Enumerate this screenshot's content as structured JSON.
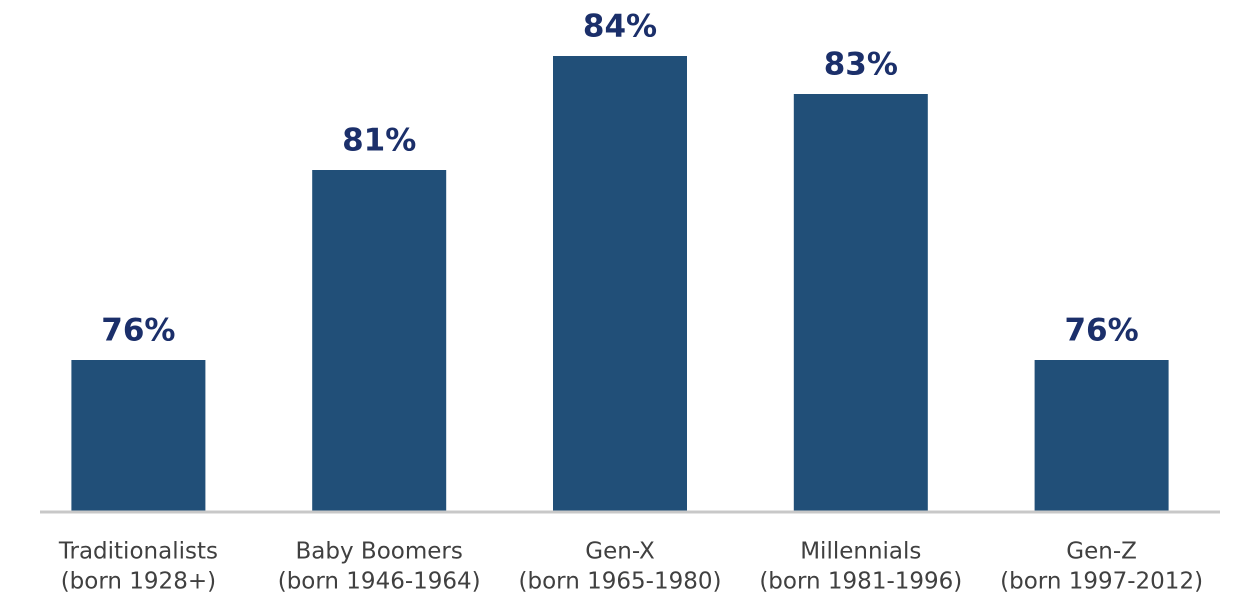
{
  "chart_data": {
    "type": "bar",
    "categories": [
      [
        "Traditionalists",
        "(born 1928+)"
      ],
      [
        "Baby Boomers",
        "(born 1946-1964)"
      ],
      [
        "Gen-X",
        "(born 1965-1980)"
      ],
      [
        "Millennials",
        "(born 1981-1996)"
      ],
      [
        "Gen-Z",
        "(born 1997-2012)"
      ]
    ],
    "values": [
      76,
      81,
      84,
      83,
      76
    ],
    "value_labels": [
      "76%",
      "81%",
      "84%",
      "83%",
      "76%"
    ],
    "color": "#214f78",
    "ylim": [
      72,
      86
    ]
  }
}
